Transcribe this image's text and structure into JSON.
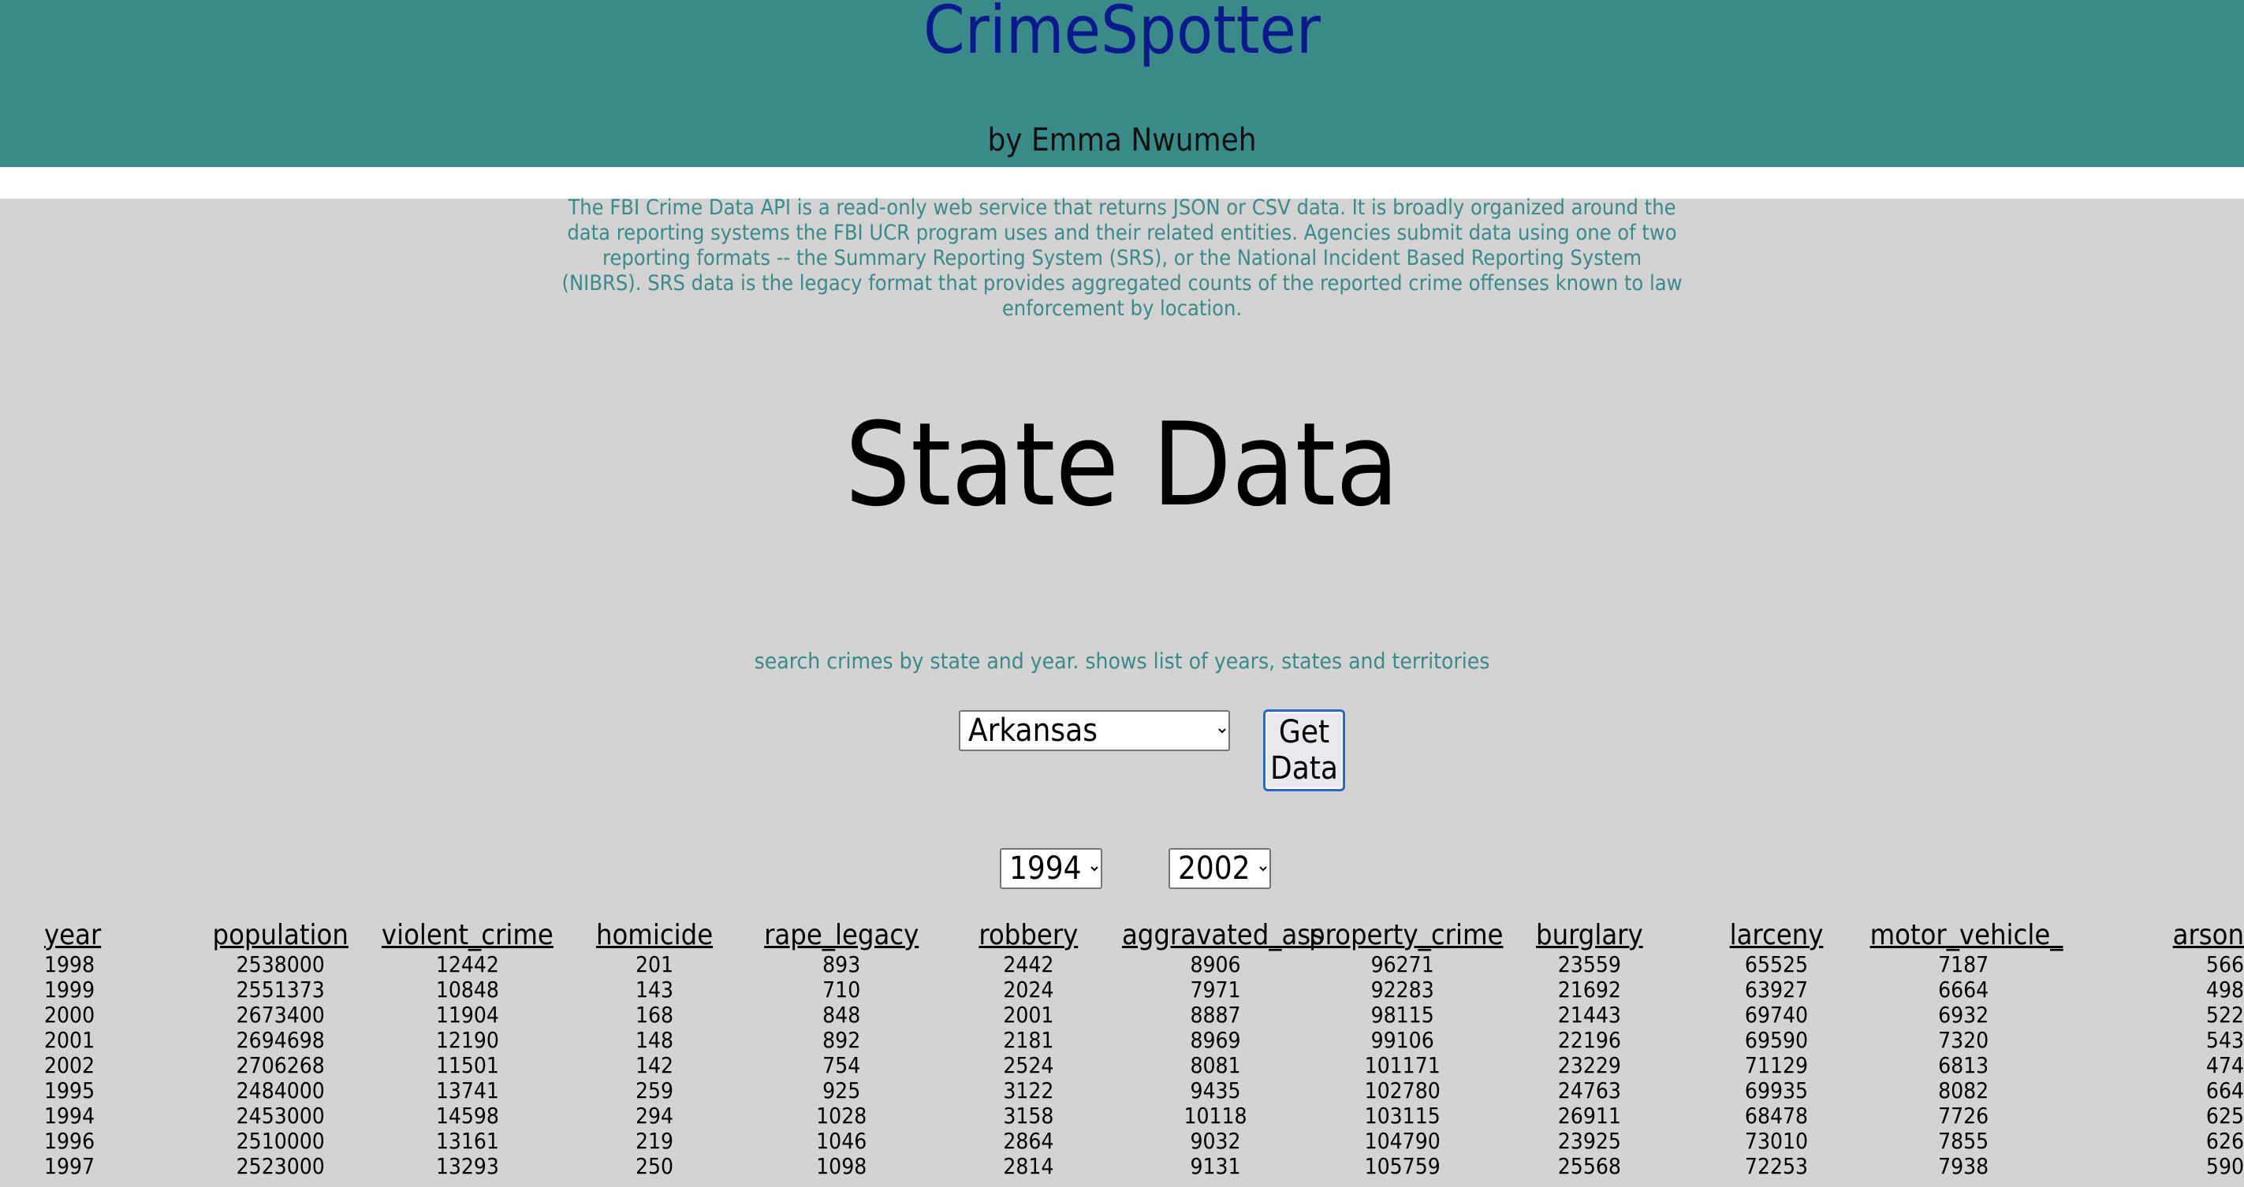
{
  "header": {
    "title": "CrimeSpotter",
    "byline": "by Emma Nwumeh"
  },
  "intro": {
    "text": "The FBI Crime Data API is a read-only web service that returns JSON or CSV data. It is broadly organized around the data reporting systems the FBI UCR program uses and their related entities. Agencies submit data using one of two reporting formats -- the Summary Reporting System (SRS), or the National Incident Based Reporting System (NIBRS). SRS data is the legacy format that provides aggregated counts of the reported crime offenses known to law enforcement by location."
  },
  "page_title": "State Data",
  "search": {
    "description": "search crimes by state and year. shows list of years, states and territories",
    "state_selected": "Arkansas",
    "button_label": "Get Data",
    "year_from": "1994",
    "year_to": "2002"
  },
  "table": {
    "columns": [
      "year",
      "population",
      "violent_crime",
      "homicide",
      "rape_legacy",
      "robbery",
      "aggravated_ass",
      "property_crime",
      "burglary",
      "larceny",
      "motor_vehicle_",
      "arson"
    ],
    "rows": [
      [
        "1998",
        "2538000",
        "12442",
        "201",
        "893",
        "2442",
        "8906",
        "96271",
        "23559",
        "65525",
        "7187",
        "566"
      ],
      [
        "1999",
        "2551373",
        "10848",
        "143",
        "710",
        "2024",
        "7971",
        "92283",
        "21692",
        "63927",
        "6664",
        "498"
      ],
      [
        "2000",
        "2673400",
        "11904",
        "168",
        "848",
        "2001",
        "8887",
        "98115",
        "21443",
        "69740",
        "6932",
        "522"
      ],
      [
        "2001",
        "2694698",
        "12190",
        "148",
        "892",
        "2181",
        "8969",
        "99106",
        "22196",
        "69590",
        "7320",
        "543"
      ],
      [
        "2002",
        "2706268",
        "11501",
        "142",
        "754",
        "2524",
        "8081",
        "101171",
        "23229",
        "71129",
        "6813",
        "474"
      ],
      [
        "1995",
        "2484000",
        "13741",
        "259",
        "925",
        "3122",
        "9435",
        "102780",
        "24763",
        "69935",
        "8082",
        "664"
      ],
      [
        "1994",
        "2453000",
        "14598",
        "294",
        "1028",
        "3158",
        "10118",
        "103115",
        "26911",
        "68478",
        "7726",
        "625"
      ],
      [
        "1996",
        "2510000",
        "13161",
        "219",
        "1046",
        "2864",
        "9032",
        "104790",
        "23925",
        "73010",
        "7855",
        "626"
      ],
      [
        "1997",
        "2523000",
        "13293",
        "250",
        "1098",
        "2814",
        "9131",
        "105759",
        "25568",
        "72253",
        "7938",
        "590"
      ]
    ]
  }
}
